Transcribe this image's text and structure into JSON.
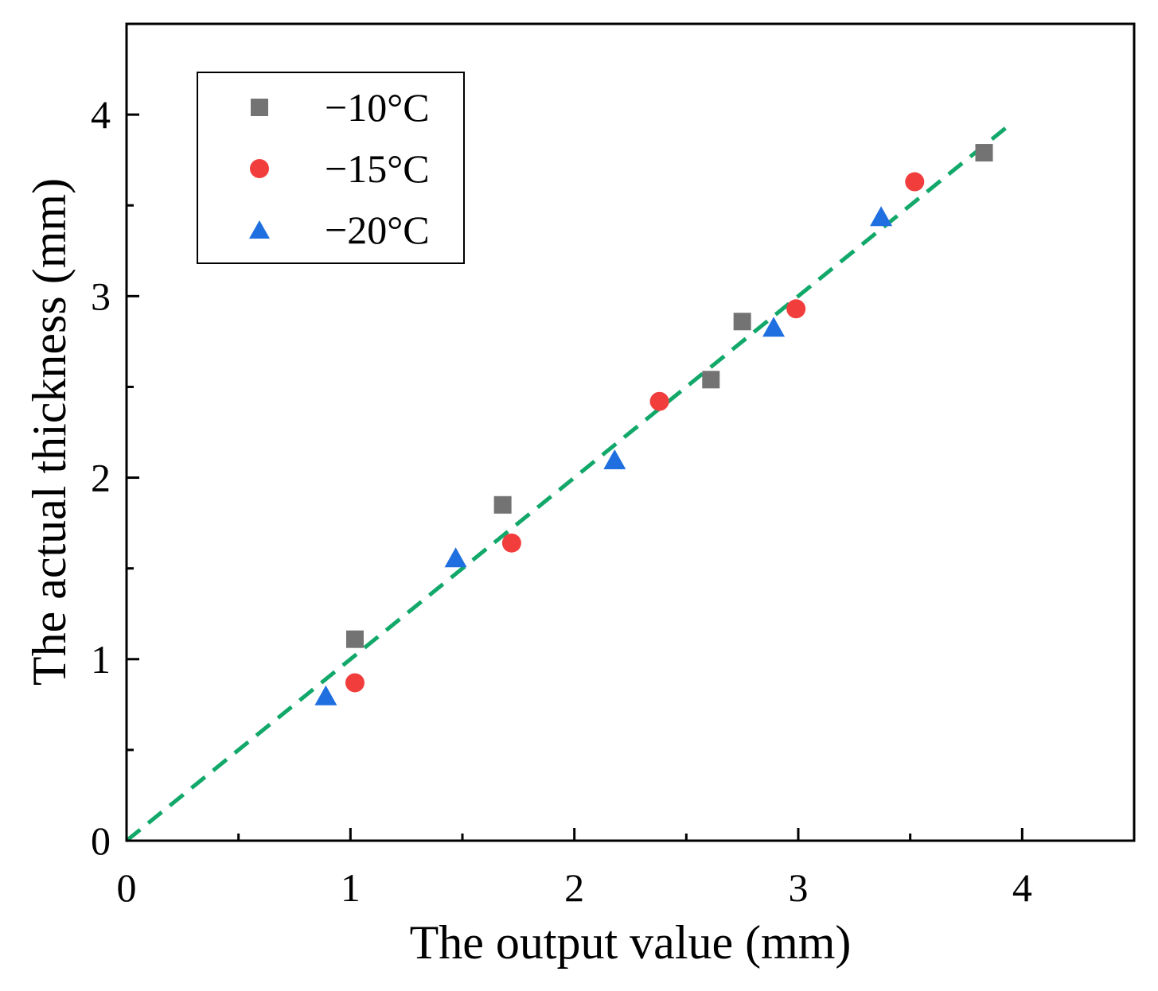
{
  "chart_data": {
    "type": "scatter",
    "title": "",
    "xlabel": "The output value (mm)",
    "ylabel": "The actual thickness (mm)",
    "xlim": [
      0,
      4.5
    ],
    "ylim": [
      0,
      4.5
    ],
    "x_ticks": [
      0,
      1,
      2,
      3,
      4
    ],
    "y_ticks": [
      0,
      1,
      2,
      3,
      4
    ],
    "grid": false,
    "legend_position": "top-left",
    "series": [
      {
        "name": "−10°C",
        "marker": "square",
        "color": "#737373",
        "x": [
          1.02,
          1.68,
          2.61,
          2.75,
          3.83
        ],
        "y": [
          1.11,
          1.85,
          2.54,
          2.86,
          3.79
        ]
      },
      {
        "name": "−15°C",
        "marker": "circle",
        "color": "#f23d3d",
        "x": [
          1.02,
          1.72,
          2.38,
          2.99,
          3.52
        ],
        "y": [
          0.87,
          1.64,
          2.42,
          2.93,
          3.63
        ]
      },
      {
        "name": "−20°C",
        "marker": "triangle",
        "color": "#1f6fe0",
        "x": [
          0.89,
          1.47,
          2.18,
          2.89,
          3.37
        ],
        "y": [
          0.79,
          1.55,
          2.09,
          2.82,
          3.43
        ]
      }
    ],
    "fit_line": {
      "style": "dashed",
      "color": "#12a86a",
      "x": [
        0,
        3.95
      ],
      "y": [
        0,
        3.95
      ]
    }
  }
}
